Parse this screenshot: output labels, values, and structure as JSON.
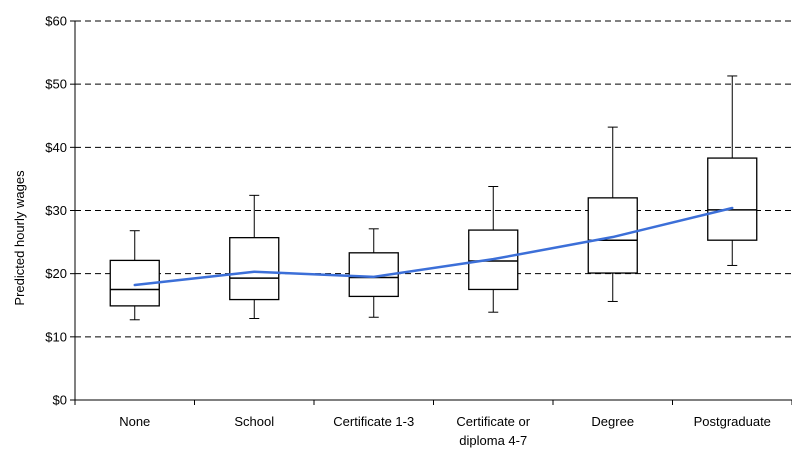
{
  "chart_data": {
    "type": "box",
    "title": "",
    "xlabel": "",
    "ylabel": "Predicted hourly wages",
    "ylim": [
      0,
      60
    ],
    "yticks": [
      0,
      10,
      20,
      30,
      40,
      50,
      60
    ],
    "ytick_labels": [
      "$0",
      "$10",
      "$20",
      "$30",
      "$40",
      "$50",
      "$60"
    ],
    "grid": "horizontal dashed",
    "legend": "none",
    "categories": [
      "None",
      "School",
      "Certificate 1-3",
      "Certificate or diploma 4-7",
      "Degree",
      "Postgraduate"
    ],
    "category_label_lines": [
      [
        "None"
      ],
      [
        "School"
      ],
      [
        "Certificate 1-3"
      ],
      [
        "Certificate or",
        "diploma 4-7"
      ],
      [
        "Degree"
      ],
      [
        "Postgraduate"
      ]
    ],
    "boxes": [
      {
        "whisker_low": 12.7,
        "q1": 14.9,
        "median": 17.5,
        "q3": 22.1,
        "whisker_high": 26.8
      },
      {
        "whisker_low": 12.9,
        "q1": 15.9,
        "median": 19.3,
        "q3": 25.7,
        "whisker_high": 32.4
      },
      {
        "whisker_low": 13.1,
        "q1": 16.4,
        "median": 19.4,
        "q3": 23.3,
        "whisker_high": 27.1
      },
      {
        "whisker_low": 13.9,
        "q1": 17.5,
        "median": 22.0,
        "q3": 26.9,
        "whisker_high": 33.8
      },
      {
        "whisker_low": 15.6,
        "q1": 20.1,
        "median": 25.3,
        "q3": 32.0,
        "whisker_high": 43.2
      },
      {
        "whisker_low": 21.3,
        "q1": 25.3,
        "median": 30.1,
        "q3": 38.3,
        "whisker_high": 51.3
      }
    ],
    "line_series": {
      "values": [
        18.2,
        20.3,
        19.5,
        22.3,
        25.8,
        30.4
      ],
      "color": "#3c6fd8"
    }
  }
}
